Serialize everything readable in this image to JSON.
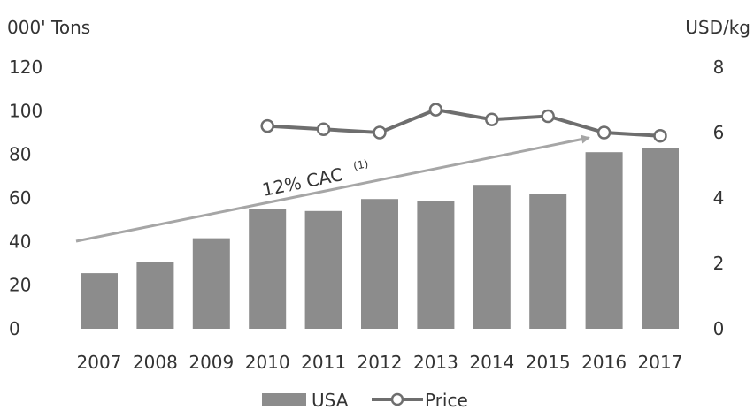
{
  "chart_data": {
    "type": "bar",
    "categories": [
      "2007",
      "2008",
      "2009",
      "2010",
      "2011",
      "2012",
      "2013",
      "2014",
      "2015",
      "2016",
      "2017"
    ],
    "series": [
      {
        "name": "USA",
        "type": "bar",
        "axis": "left",
        "values": [
          25.5,
          30.5,
          41.5,
          55,
          54,
          59.5,
          58.5,
          66,
          62,
          81,
          83
        ],
        "color": "#8c8c8c"
      },
      {
        "name": "Price",
        "type": "line",
        "axis": "right",
        "values": [
          null,
          null,
          null,
          6.2,
          6.1,
          6.0,
          6.7,
          6.4,
          6.5,
          6.0,
          5.9
        ],
        "color": "#6e6e6e"
      }
    ],
    "left_axis": {
      "label": "000' Tons",
      "min": 0,
      "max": 120,
      "ticks": [
        0,
        20,
        40,
        60,
        80,
        100,
        120
      ]
    },
    "right_axis": {
      "label": "USD/kg",
      "min": 0,
      "max": 8,
      "ticks": [
        0,
        2,
        4,
        6,
        8
      ]
    },
    "annotation": {
      "text": "12% CAC",
      "superscript": "(1)",
      "color": "#a6a6a6"
    },
    "legend": {
      "position": "bottom",
      "entries": [
        "USA",
        "Price"
      ]
    },
    "grid": false
  }
}
